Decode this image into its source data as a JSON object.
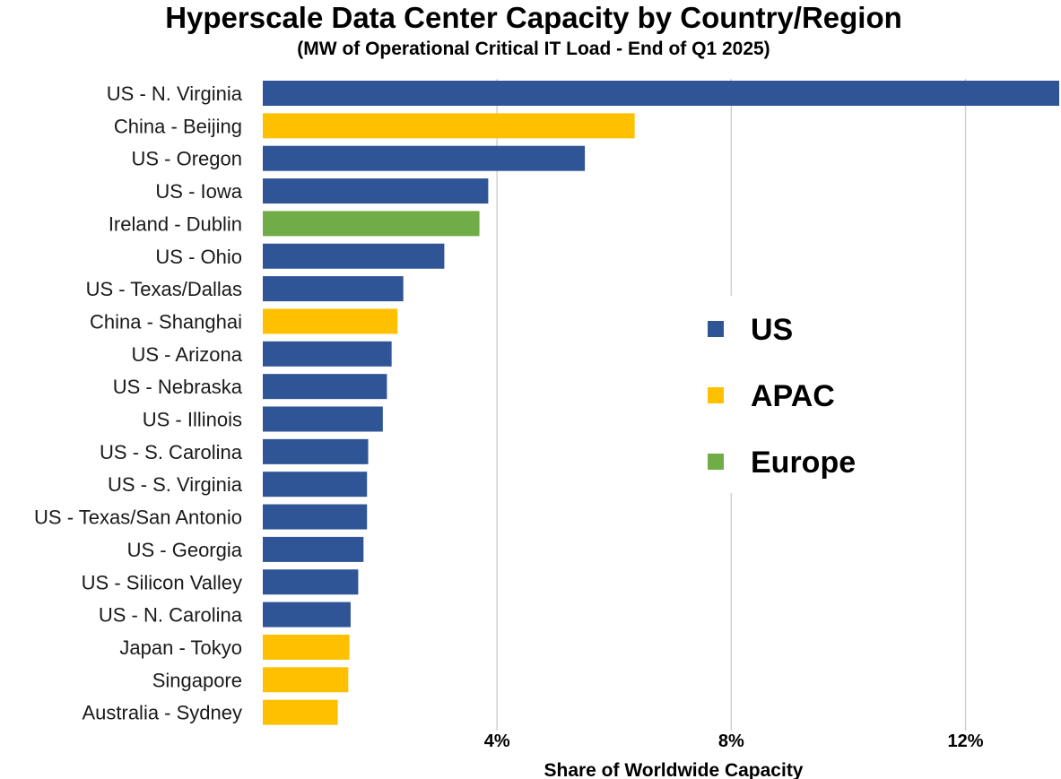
{
  "chart_data": {
    "type": "bar",
    "orientation": "horizontal",
    "title": "Hyperscale Data Center Capacity by Country/Region",
    "subtitle": "(MW of Operational Critical IT Load - End of Q1 2025)",
    "xlabel": "Share of Worldwide Capacity",
    "ylabel": "",
    "xlim": [
      0,
      13.6
    ],
    "xticks": [
      {
        "value": 4,
        "label": "4%"
      },
      {
        "value": 8,
        "label": "8%"
      },
      {
        "value": 12,
        "label": "12%"
      }
    ],
    "grid": true,
    "categories": [
      "US - N. Virginia",
      "China - Beijing",
      "US - Oregon",
      "US - Iowa",
      "Ireland - Dublin",
      "US - Ohio",
      "US - Texas/Dallas",
      "China - Shanghai",
      "US - Arizona",
      "US - Nebraska",
      "US - Illinois",
      "US - S. Carolina",
      "US - S. Virginia",
      "US - Texas/San Antonio",
      "US - Georgia",
      "US - Silicon Valley",
      "US - N. Carolina",
      "Japan - Tokyo",
      "Singapore",
      "Australia - Sydney"
    ],
    "values": [
      13.6,
      6.35,
      5.5,
      3.85,
      3.7,
      3.1,
      2.4,
      2.3,
      2.2,
      2.12,
      2.05,
      1.8,
      1.78,
      1.78,
      1.72,
      1.63,
      1.5,
      1.48,
      1.46,
      1.28
    ],
    "groups": [
      "US",
      "APAC",
      "US",
      "US",
      "Europe",
      "US",
      "US",
      "APAC",
      "US",
      "US",
      "US",
      "US",
      "US",
      "US",
      "US",
      "US",
      "US",
      "APAC",
      "APAC",
      "APAC"
    ],
    "legend": {
      "placement": "right",
      "entries": [
        {
          "name": "US",
          "color": "#2F5597"
        },
        {
          "name": "APAC",
          "color": "#FFC000"
        },
        {
          "name": "Europe",
          "color": "#70AD47"
        }
      ]
    }
  }
}
